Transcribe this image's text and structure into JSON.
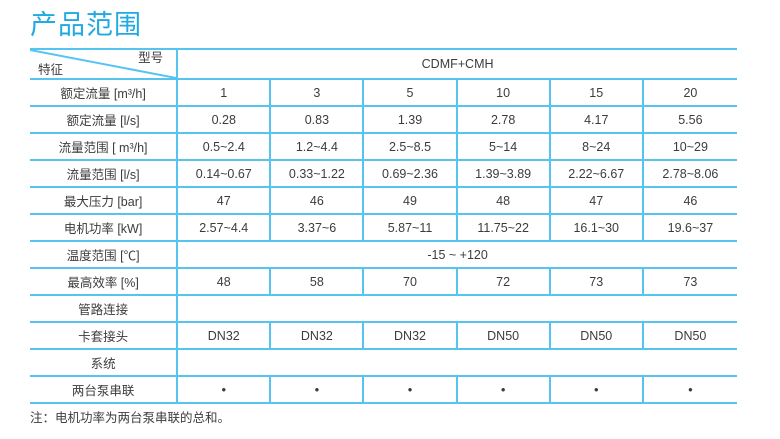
{
  "page": {
    "title": "产品范围",
    "note": "注：电机功率为两台泵串联的总和。"
  },
  "colors": {
    "accent": "#21a9e1",
    "table_border": "#56c4f1",
    "text": "#3c3c3c"
  },
  "table": {
    "corner": {
      "top_right": "型号",
      "bottom_left": "特征"
    },
    "model_header": "CDMF+CMH",
    "rows": [
      {
        "label": "额定流量 [m³/h]",
        "type": "cells",
        "values": [
          "1",
          "3",
          "5",
          "10",
          "15",
          "20"
        ]
      },
      {
        "label": "额定流量 [l/s]",
        "type": "cells",
        "values": [
          "0.28",
          "0.83",
          "1.39",
          "2.78",
          "4.17",
          "5.56"
        ]
      },
      {
        "label": "流量范围 [ m³/h]",
        "type": "cells",
        "values": [
          "0.5~2.4",
          "1.2~4.4",
          "2.5~8.5",
          "5~14",
          "8~24",
          "10~29"
        ]
      },
      {
        "label": "流量范围 [l/s]",
        "type": "cells",
        "values": [
          "0.14~0.67",
          "0.33~1.22",
          "0.69~2.36",
          "1.39~3.89",
          "2.22~6.67",
          "2.78~8.06"
        ]
      },
      {
        "label": "最大压力 [bar]",
        "type": "cells",
        "values": [
          "47",
          "46",
          "49",
          "48",
          "47",
          "46"
        ]
      },
      {
        "label": "电机功率 [kW]",
        "type": "cells",
        "values": [
          "2.57~4.4",
          "3.37~6",
          "5.87~11",
          "11.75~22",
          "16.1~30",
          "19.6~37"
        ]
      },
      {
        "label": "温度范围 [℃]",
        "type": "merged",
        "value": "-15 ~ +120"
      },
      {
        "label": "最高效率 [%]",
        "type": "cells",
        "values": [
          "48",
          "58",
          "70",
          "72",
          "73",
          "73"
        ]
      },
      {
        "label": "管路连接",
        "type": "merged",
        "value": ""
      },
      {
        "label": "卡套接头",
        "type": "cells",
        "values": [
          "DN32",
          "DN32",
          "DN32",
          "DN50",
          "DN50",
          "DN50"
        ]
      },
      {
        "label": "系统",
        "type": "merged",
        "value": ""
      },
      {
        "label": "两台泵串联",
        "type": "cells",
        "values": [
          "•",
          "•",
          "•",
          "•",
          "•",
          "•"
        ],
        "bullet": true
      }
    ]
  }
}
